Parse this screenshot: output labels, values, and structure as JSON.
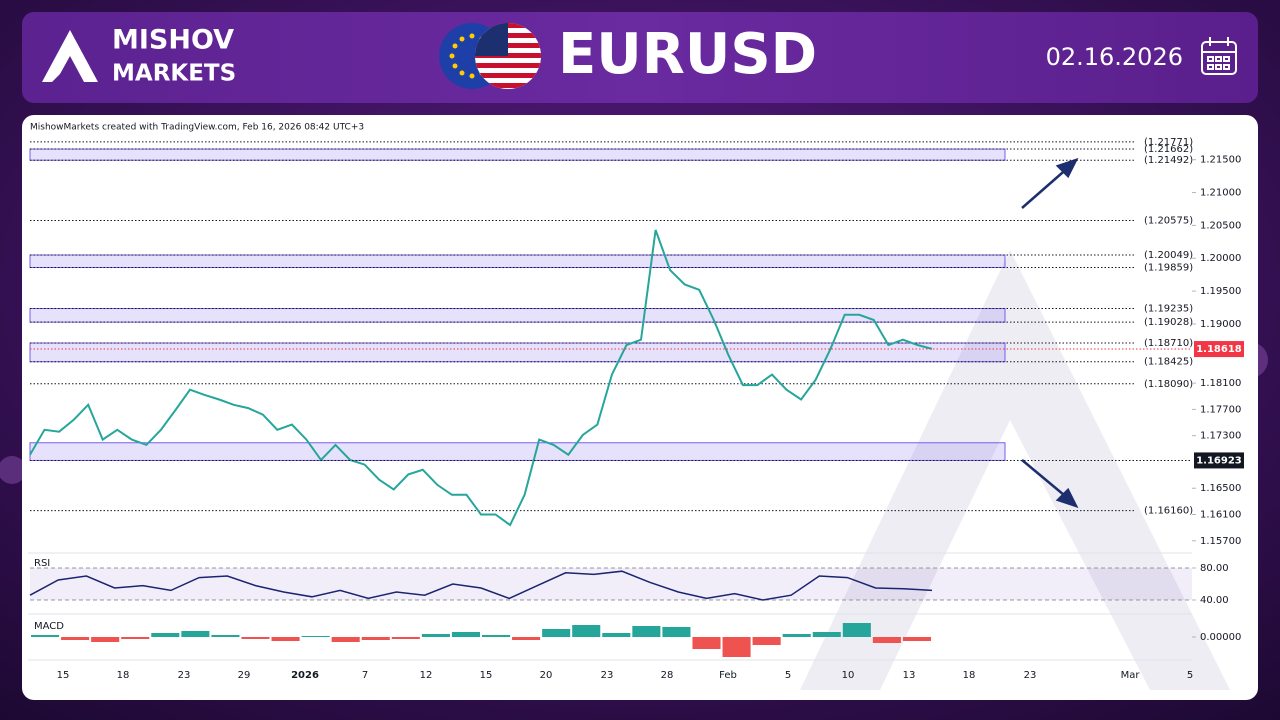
{
  "header": {
    "brand_line1": "MISHOV",
    "brand_line2": "MARKETS",
    "symbol": "EURUSD",
    "date": "02.16.2026"
  },
  "attribution": "MishowMarkets created with TradingView.com, Feb 16, 2026 08:42 UTC+3",
  "chart_data": [
    {
      "type": "line",
      "color": "#26a69a",
      "values": [
        1.1701,
        1.1739,
        1.1736,
        1.1754,
        1.1777,
        1.1724,
        1.1739,
        1.1724,
        1.1716,
        1.1739,
        1.1769,
        1.18,
        1.1792,
        1.1785,
        1.1777,
        1.1772,
        1.1762,
        1.1739,
        1.1747,
        1.1724,
        1.1693,
        1.1716,
        1.1693,
        1.1686,
        1.1663,
        1.1648,
        1.1671,
        1.1678,
        1.1655,
        1.164,
        1.164,
        1.161,
        1.161,
        1.1594,
        1.164,
        1.1724,
        1.1716,
        1.1701,
        1.1731,
        1.1747,
        1.1823,
        1.1868,
        1.1876,
        1.2043,
        1.1982,
        1.196,
        1.1952,
        1.1906,
        1.1853,
        1.1807,
        1.1807,
        1.1823,
        1.18,
        1.1785,
        1.1815,
        1.1861,
        1.1914,
        1.1914,
        1.1906,
        1.1868,
        1.1876,
        1.1868,
        1.1862
      ],
      "ylim": [
        1.1556,
        1.2183
      ],
      "yticks": [
        {
          "value": 1.215,
          "label": "1.21500"
        },
        {
          "value": 1.21,
          "label": "1.21000"
        },
        {
          "value": 1.205,
          "label": "1.20500"
        },
        {
          "value": 1.2,
          "label": "1.20000"
        },
        {
          "value": 1.195,
          "label": "1.19500"
        },
        {
          "value": 1.19,
          "label": "1.19000"
        },
        {
          "value": 1.181,
          "label": "1.18100"
        },
        {
          "value": 1.177,
          "label": "1.17700"
        },
        {
          "value": 1.173,
          "label": "1.17300"
        },
        {
          "value": 1.165,
          "label": "1.16500"
        },
        {
          "value": 1.161,
          "label": "1.16100"
        },
        {
          "value": 1.157,
          "label": "1.15700"
        }
      ],
      "levels": [
        {
          "value": 1.21771,
          "label": "(1.21771)"
        },
        {
          "value": 1.21662,
          "label": "(1.21662)"
        },
        {
          "value": 1.21492,
          "label": "(1.21492)"
        },
        {
          "value": 1.20575,
          "label": "(1.20575)"
        },
        {
          "value": 1.20049,
          "label": "(1.20049)"
        },
        {
          "value": 1.19859,
          "label": "(1.19859)"
        },
        {
          "value": 1.19235,
          "label": "(1.19235)"
        },
        {
          "value": 1.19028,
          "label": "(1.19028)"
        },
        {
          "value": 1.1871,
          "label": "(1.18710)"
        },
        {
          "value": 1.18425,
          "label": "(1.18425)"
        },
        {
          "value": 1.1809,
          "label": "(1.18090)"
        },
        {
          "value": 1.1616,
          "label": "(1.16160)"
        }
      ],
      "zones": [
        {
          "low": 1.21492,
          "high": 1.21662
        },
        {
          "low": 1.19859,
          "high": 1.20049
        },
        {
          "low": 1.19028,
          "high": 1.19235
        },
        {
          "low": 1.18425,
          "high": 1.1871
        },
        {
          "low": 1.16923,
          "high": 1.17192
        }
      ],
      "zone_color": "#7b5cf0",
      "markers": [
        {
          "value": 1.18618,
          "color": "#f23645"
        },
        {
          "value": 1.16923,
          "color": "#131722"
        }
      ],
      "xticks": [
        "15",
        "18",
        "23",
        "29",
        "2026",
        "7",
        "12",
        "15",
        "20",
        "23",
        "28",
        "Feb",
        "5",
        "10",
        "13",
        "18",
        "23",
        "Mar",
        "5"
      ]
    },
    {
      "type": "line",
      "title": "RSI",
      "color": "#1a2470",
      "values": [
        46,
        65,
        70,
        55,
        58,
        52,
        68,
        70,
        58,
        50,
        44,
        52,
        42,
        50,
        46,
        60,
        55,
        42,
        58,
        74,
        72,
        76,
        62,
        50,
        42,
        48,
        40,
        46,
        70,
        68,
        55,
        54,
        52
      ],
      "ylim": [
        27.5,
        96.25
      ],
      "yticks": [
        {
          "value": 80,
          "label": "80.00"
        },
        {
          "value": 40,
          "label": "40.00"
        }
      ]
    },
    {
      "type": "bar",
      "title": "MACD",
      "colors": {
        "up": "#26a69a",
        "down": "#ef5350"
      },
      "values": [
        0.0002,
        -0.0003,
        -0.0005,
        -0.0002,
        0.0004,
        0.0006,
        0.0002,
        -0.0002,
        -0.0004,
        0.0001,
        -0.0005,
        -0.0003,
        -0.0002,
        0.0003,
        0.0005,
        0.0002,
        -0.0003,
        0.0008,
        0.0012,
        0.0004,
        0.0011,
        0.001,
        -0.0012,
        -0.002,
        -0.0008,
        0.0003,
        0.0005,
        0.0014,
        -0.0006,
        -0.0004
      ],
      "ylim": [
        -0.0023,
        0.0019
      ],
      "yticks": [
        {
          "value": 0,
          "label": "0.00000"
        }
      ]
    }
  ]
}
